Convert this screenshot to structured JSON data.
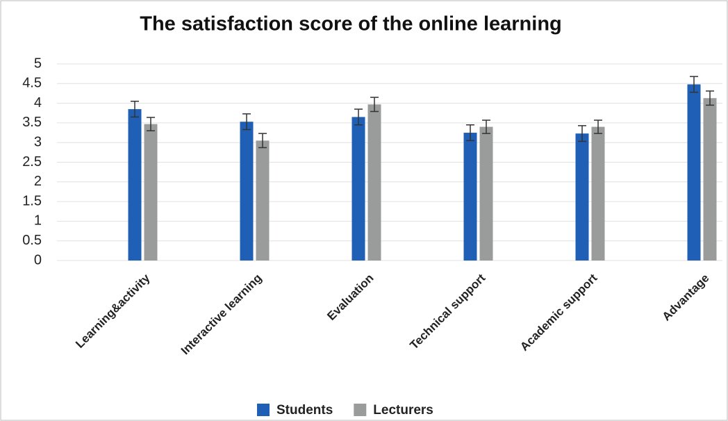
{
  "chart_data": {
    "type": "bar",
    "title": "The satisfaction score of the online learning",
    "categories": [
      "Learning&activity",
      "Interactive learning",
      "Evaluation",
      "Technical support",
      "Academic support",
      "Advantage"
    ],
    "series": [
      {
        "name": "Students",
        "color": "#1f5fb5",
        "values": [
          3.85,
          3.53,
          3.65,
          3.25,
          3.23,
          4.48
        ],
        "errors": [
          0.2,
          0.2,
          0.2,
          0.2,
          0.2,
          0.2
        ]
      },
      {
        "name": "Lecturers",
        "color": "#9a9b9b",
        "values": [
          3.47,
          3.05,
          3.97,
          3.4,
          3.4,
          4.13
        ],
        "errors": [
          0.17,
          0.18,
          0.18,
          0.17,
          0.17,
          0.18
        ]
      }
    ],
    "ylim": [
      0,
      5
    ],
    "yticks": [
      0,
      0.5,
      1,
      1.5,
      2,
      2.5,
      3,
      3.5,
      4,
      4.5,
      5
    ],
    "grid": true,
    "legend": "bottom"
  }
}
